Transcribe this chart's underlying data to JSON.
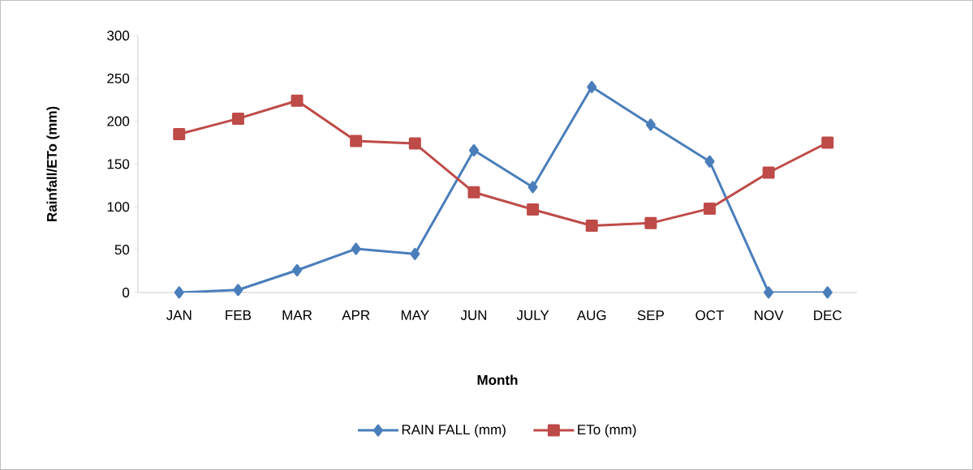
{
  "chart_data": {
    "type": "line",
    "xlabel": "Month",
    "ylabel": "Rainfall/ETo (mm)",
    "categories": [
      "JAN",
      "FEB",
      "MAR",
      "APR",
      "MAY",
      "JUN",
      "JULY",
      "AUG",
      "SEP",
      "OCT",
      "NOV",
      "DEC"
    ],
    "series": [
      {
        "name": "RAIN FALL (mm)",
        "color": "#4a7ebb",
        "marker": "diamond",
        "values": [
          0,
          3,
          26,
          51,
          45,
          166,
          123,
          240,
          196,
          153,
          0,
          0
        ]
      },
      {
        "name": "ETo (mm)",
        "color": "#be4b48",
        "marker": "square",
        "values": [
          185,
          203,
          224,
          177,
          174,
          117,
          97,
          78,
          81,
          98,
          140,
          175
        ]
      }
    ],
    "ylim": [
      0,
      300
    ],
    "yticks": [
      0,
      50,
      100,
      150,
      200,
      250,
      300
    ],
    "grid": false,
    "legend": "bottom",
    "line_style": "solid"
  }
}
